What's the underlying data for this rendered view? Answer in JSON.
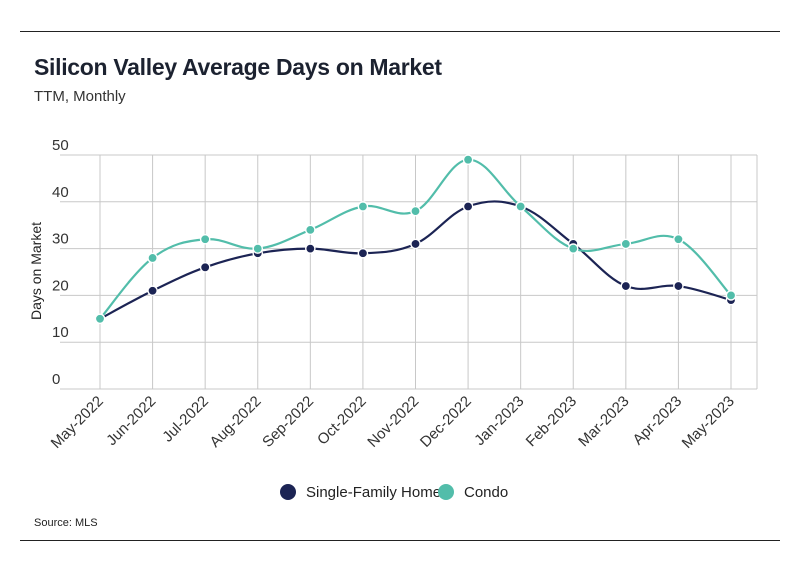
{
  "header": {
    "title": "Silicon Valley Average Days on Market",
    "subtitle": "TTM, Monthly"
  },
  "footer": {
    "source": "Source:  MLS"
  },
  "colors": {
    "single_family": "#1c2454",
    "condo": "#52bdaa",
    "grid": "#c8c8c8"
  },
  "chart_data": {
    "type": "line",
    "title": "Silicon Valley Average Days on Market",
    "subtitle": "TTM, Monthly",
    "xlabel": "",
    "ylabel": "Days on Market",
    "ylim": [
      0,
      50
    ],
    "yticks": [
      0,
      10,
      20,
      30,
      40,
      50
    ],
    "grid": true,
    "legend_position": "bottom",
    "categories": [
      "May-2022",
      "Jun-2022",
      "Jul-2022",
      "Aug-2022",
      "Sep-2022",
      "Oct-2022",
      "Nov-2022",
      "Dec-2022",
      "Jan-2023",
      "Feb-2023",
      "Mar-2023",
      "Apr-2023",
      "May-2023"
    ],
    "series": [
      {
        "name": "Single-Family Home",
        "values": [
          15,
          21,
          26,
          29,
          30,
          29,
          31,
          39,
          39,
          31,
          22,
          22,
          19
        ]
      },
      {
        "name": "Condo",
        "values": [
          15,
          28,
          32,
          30,
          34,
          39,
          38,
          49,
          39,
          30,
          31,
          32,
          20
        ]
      }
    ]
  }
}
